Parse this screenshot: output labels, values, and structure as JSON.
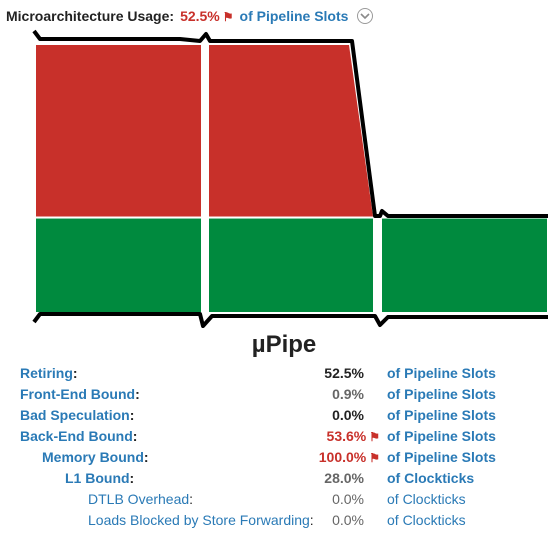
{
  "header": {
    "label": "Microarchitecture Usage:",
    "value": "52.5%",
    "unit": "of Pipeline Slots",
    "value_color": "#c8302a",
    "flag_icon": "flag-icon",
    "expand_icon": "chevron-down-circle-icon"
  },
  "chart_data": {
    "type": "diagram",
    "title": "µPipe",
    "colors": {
      "bad": "#c8302a",
      "good": "#008a3e",
      "outline": "#000000"
    },
    "stages": [
      {
        "bad_fraction": 0.65,
        "good_fraction": 0.35
      },
      {
        "bad_fraction": 0.65,
        "good_fraction": 0.35
      },
      {
        "bad_fraction": 0.0,
        "good_fraction": 1.0
      }
    ]
  },
  "metrics": [
    {
      "name": "Retiring",
      "colon": ":",
      "value": "52.5%",
      "unit": "of Pipeline Slots",
      "bold": true,
      "flag": false,
      "name_color": "#2a7ab6",
      "value_color": "#222222",
      "unit_color": "#2a7ab6"
    },
    {
      "name": "Front-End Bound",
      "colon": ":",
      "value": "0.9%",
      "unit": "of Pipeline Slots",
      "bold": true,
      "flag": false,
      "name_color": "#2a7ab6",
      "value_color": "#666666",
      "unit_color": "#2a7ab6"
    },
    {
      "name": "Bad Speculation",
      "colon": ":",
      "value": "0.0%",
      "unit": "of Pipeline Slots",
      "bold": true,
      "flag": false,
      "name_color": "#2a7ab6",
      "value_color": "#222222",
      "unit_color": "#2a7ab6"
    },
    {
      "name": "Back-End Bound",
      "colon": ":",
      "value": "53.6%",
      "unit": "of Pipeline Slots",
      "bold": true,
      "flag": true,
      "name_color": "#2a7ab6",
      "value_color": "#c8302a",
      "unit_color": "#2a7ab6"
    },
    {
      "name": "Memory Bound",
      "colon": ":",
      "value": "100.0%",
      "unit": "of Pipeline Slots",
      "bold": true,
      "flag": true,
      "name_color": "#2a7ab6",
      "value_color": "#c8302a",
      "unit_color": "#2a7ab6"
    },
    {
      "name": "L1 Bound",
      "colon": ":",
      "value": "28.0%",
      "unit": "of Clockticks",
      "bold": true,
      "flag": false,
      "name_color": "#2a7ab6",
      "value_color": "#666666",
      "unit_color": "#2a7ab6"
    },
    {
      "name": "DTLB Overhead",
      "colon": ":",
      "value": "0.0%",
      "unit": "of Clockticks",
      "bold": false,
      "flag": false,
      "name_color": "#2a7ab6",
      "value_color": "#666666",
      "unit_color": "#2a7ab6"
    },
    {
      "name": "Loads Blocked by Store Forwarding",
      "colon": ":",
      "value": "0.0%",
      "unit": "of Clockticks",
      "bold": false,
      "flag": false,
      "name_color": "#2a7ab6",
      "value_color": "#666666",
      "unit_color": "#2a7ab6"
    }
  ]
}
